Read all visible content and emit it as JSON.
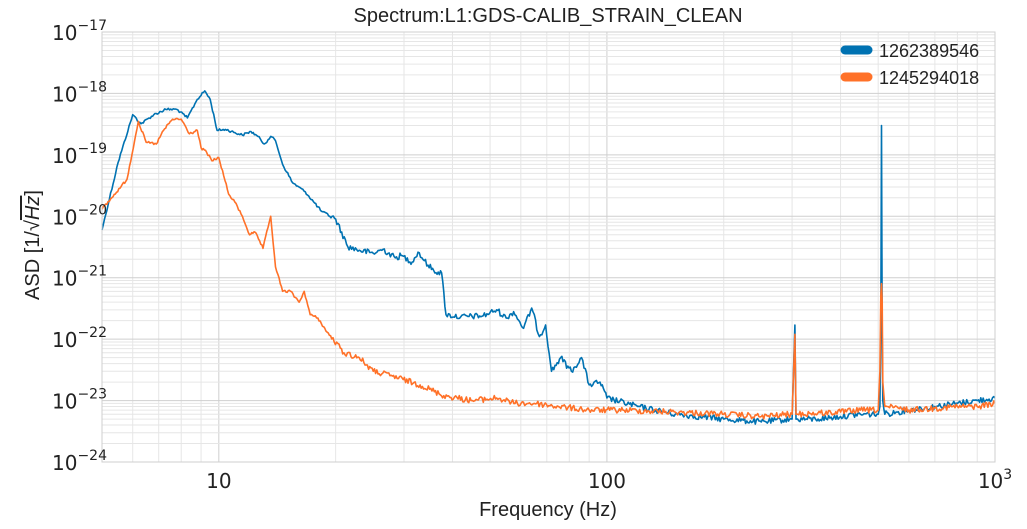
{
  "chart_data": {
    "type": "line",
    "title": "Spectrum:L1:GDS-CALIB_STRAIN_CLEAN",
    "xlabel": "Frequency (Hz)",
    "ylabel_prefix": "ASD  [1/√",
    "ylabel_unit": "Hz",
    "ylabel_suffix": "]",
    "xscale": "log",
    "yscale": "log",
    "xlim": [
      5,
      1000
    ],
    "ylim": [
      1e-24,
      1e-17
    ],
    "grid": true,
    "legend_position": "top-right",
    "x_ticks": [
      {
        "value": 10,
        "base": "10",
        "exp": ""
      },
      {
        "value": 100,
        "base": "100",
        "exp": ""
      },
      {
        "value": 1000,
        "base": "10",
        "exp": "3"
      }
    ],
    "y_ticks": [
      {
        "value": 1e-24,
        "base": "10",
        "exp": "−24"
      },
      {
        "value": 1e-23,
        "base": "10",
        "exp": "−23"
      },
      {
        "value": 1e-22,
        "base": "10",
        "exp": "−22"
      },
      {
        "value": 1e-21,
        "base": "10",
        "exp": "−21"
      },
      {
        "value": 1e-20,
        "base": "10",
        "exp": "−20"
      },
      {
        "value": 1e-19,
        "base": "10",
        "exp": "−19"
      },
      {
        "value": 1e-18,
        "base": "10",
        "exp": "−18"
      },
      {
        "value": 1e-17,
        "base": "10",
        "exp": "−17"
      }
    ],
    "series": [
      {
        "name": "1262389546",
        "color": "#0072b2",
        "x": [
          5,
          5.5,
          6,
          6.3,
          6.8,
          7.3,
          7.8,
          8.3,
          8.8,
          9.2,
          9.5,
          9.9,
          10.4,
          11.0,
          11.5,
          12.1,
          12.6,
          13.1,
          13.6,
          14.0,
          14.6,
          15.5,
          16.7,
          18.4,
          20.0,
          21.5,
          23.0,
          25.0,
          26.5,
          28.5,
          29.5,
          31.5,
          32.6,
          34.6,
          35.8,
          37.5,
          38.5,
          42,
          48,
          52,
          55,
          57.5,
          61,
          64,
          67,
          69.5,
          72,
          76,
          81,
          86,
          90,
          96,
          100,
          120,
          150,
          200,
          250,
          300,
          305,
          307,
          310,
          350,
          400,
          450,
          500,
          505,
          508,
          510,
          512,
          514,
          520,
          560,
          600,
          700,
          800,
          900,
          1000
        ],
        "y": [
          6e-21,
          7.5e-20,
          4.5e-19,
          3.2e-19,
          4.5e-19,
          5.5e-19,
          5.5e-19,
          4e-19,
          8e-19,
          1.1e-18,
          8e-19,
          2.5e-19,
          2.6e-19,
          2.3e-19,
          2.1e-19,
          2.4e-19,
          2e-19,
          1.5e-19,
          2e-19,
          1.7e-19,
          7e-20,
          3.5e-20,
          2.5e-20,
          1.2e-20,
          9e-21,
          3.2e-21,
          2.8e-21,
          2.5e-21,
          2.9e-21,
          2.1e-21,
          2.3e-21,
          1.8e-21,
          2.6e-21,
          1.6e-21,
          1.3e-21,
          1.2e-21,
          2.5e-22,
          2.3e-22,
          2.4e-22,
          3e-22,
          2.2e-22,
          2.8e-22,
          1.5e-22,
          3.2e-22,
          1.1e-22,
          1.7e-22,
          3e-23,
          5e-23,
          3e-23,
          5e-23,
          1.8e-23,
          2e-23,
          1.1e-23,
          8e-24,
          6e-24,
          5e-24,
          4.5e-24,
          5e-24,
          1.7e-22,
          5e-24,
          5e-24,
          5e-24,
          5.5e-24,
          6e-24,
          6e-24,
          8e-24,
          1.5e-22,
          3e-19,
          1.2e-22,
          1e-23,
          6e-24,
          6.5e-24,
          7e-24,
          8e-24,
          9e-24,
          1e-23,
          1.1e-23
        ]
      },
      {
        "name": "1245294018",
        "color": "#ff7128",
        "x": [
          5,
          5.3,
          5.8,
          6.2,
          6.5,
          6.9,
          7.2,
          7.6,
          8.0,
          8.4,
          8.8,
          9.0,
          9.3,
          9.6,
          10.0,
          10.6,
          11.0,
          11.5,
          12.0,
          12.4,
          13.0,
          13.6,
          14.0,
          14.6,
          15.3,
          16.1,
          16.6,
          17.2,
          18.0,
          19.0,
          21.0,
          23.0,
          25.0,
          28.0,
          33.0,
          38.0,
          45.0,
          52.0,
          58.0,
          65.0,
          75.0,
          90.0,
          110.0,
          150.0,
          200.0,
          250.0,
          300.0,
          305.0,
          307.0,
          310.0,
          400.0,
          450.0,
          500.0,
          505.0,
          508.0,
          510.0,
          512.0,
          514.0,
          520.0,
          600.0,
          700.0,
          800.0,
          900.0,
          1000.0
        ],
        "y": [
          1.3e-20,
          2e-20,
          4e-20,
          3.5e-19,
          1.6e-19,
          1.5e-19,
          2.5e-19,
          3.8e-19,
          3.8e-19,
          2.2e-19,
          2.5e-19,
          1.3e-19,
          1.1e-19,
          8e-20,
          9e-20,
          2.3e-20,
          1.7e-20,
          1e-20,
          5e-21,
          5.5e-21,
          3e-21,
          1e-20,
          1.5e-21,
          6e-22,
          6e-22,
          4e-22,
          6e-22,
          2.5e-22,
          2.2e-22,
          1.3e-22,
          6e-23,
          5e-23,
          3e-23,
          2.5e-23,
          1.8e-23,
          1.2e-23,
          1e-23,
          1.1e-23,
          9e-24,
          9e-24,
          8e-24,
          7e-24,
          7e-24,
          6.5e-24,
          6e-24,
          5.5e-24,
          6e-24,
          1.2e-22,
          6e-24,
          6e-24,
          6.5e-24,
          7e-24,
          7e-24,
          3e-23,
          5e-22,
          8e-22,
          4e-22,
          2e-23,
          8e-24,
          7e-24,
          7.5e-24,
          8e-24,
          8e-24,
          9e-24
        ]
      }
    ]
  }
}
